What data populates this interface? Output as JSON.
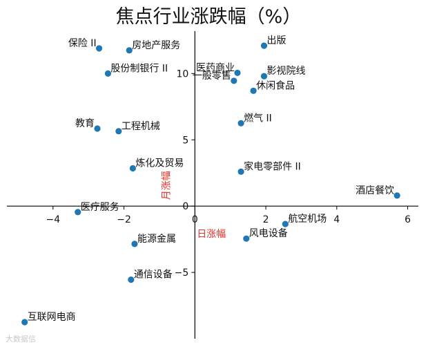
{
  "chart_data": {
    "type": "scatter",
    "title": "焦点行业涨跌幅（%）",
    "xlabel": "日涨幅",
    "ylabel": "月涨幅",
    "xlim": [
      -5.3,
      6.3
    ],
    "ylim": [
      -10.0,
      13.2
    ],
    "xticks": [
      -4,
      -2,
      0,
      2,
      4,
      6
    ],
    "yticks": [
      -5,
      0,
      5,
      10
    ],
    "grid": false,
    "point_color": "#1f77b4",
    "axis_label_color": "#e8302a",
    "points": [
      {
        "label": "保险 II",
        "x": -2.7,
        "y": 11.9,
        "anchor": "end"
      },
      {
        "label": "房地产服务",
        "x": -1.85,
        "y": 11.75,
        "anchor": "start"
      },
      {
        "label": "出版",
        "x": 1.95,
        "y": 12.1,
        "anchor": "start"
      },
      {
        "label": "股份制银行 II",
        "x": -2.45,
        "y": 10.0,
        "anchor": "start"
      },
      {
        "label": "医药商业",
        "x": 1.2,
        "y": 10.05,
        "anchor": "end"
      },
      {
        "label": "影视院线",
        "x": 1.95,
        "y": 9.8,
        "anchor": "start"
      },
      {
        "label": "一般零售",
        "x": 1.1,
        "y": 9.45,
        "anchor": "end"
      },
      {
        "label": "休闲食品",
        "x": 1.65,
        "y": 8.7,
        "anchor": "start"
      },
      {
        "label": "教育",
        "x": -2.75,
        "y": 5.85,
        "anchor": "end"
      },
      {
        "label": "工程机械",
        "x": -2.15,
        "y": 5.65,
        "anchor": "start"
      },
      {
        "label": "燃气 II",
        "x": 1.3,
        "y": 6.25,
        "anchor": "start"
      },
      {
        "label": "炼化及贸易",
        "x": -1.75,
        "y": 2.85,
        "anchor": "start"
      },
      {
        "label": "家电零部件 II",
        "x": 1.3,
        "y": 2.6,
        "anchor": "start"
      },
      {
        "label": "酒店餐饮",
        "x": 5.7,
        "y": 0.8,
        "anchor": "end"
      },
      {
        "label": "医疗服务",
        "x": -3.3,
        "y": -0.45,
        "anchor": "start"
      },
      {
        "label": "航空机场",
        "x": 2.55,
        "y": -1.35,
        "anchor": "start"
      },
      {
        "label": "能源金属",
        "x": -1.7,
        "y": -2.85,
        "anchor": "start"
      },
      {
        "label": "风电设备",
        "x": 1.45,
        "y": -2.45,
        "anchor": "start"
      },
      {
        "label": "通信设备",
        "x": -1.8,
        "y": -5.55,
        "anchor": "start"
      },
      {
        "label": "互联网电商",
        "x": -4.8,
        "y": -8.75,
        "anchor": "start"
      }
    ]
  },
  "watermark": "大数据信"
}
